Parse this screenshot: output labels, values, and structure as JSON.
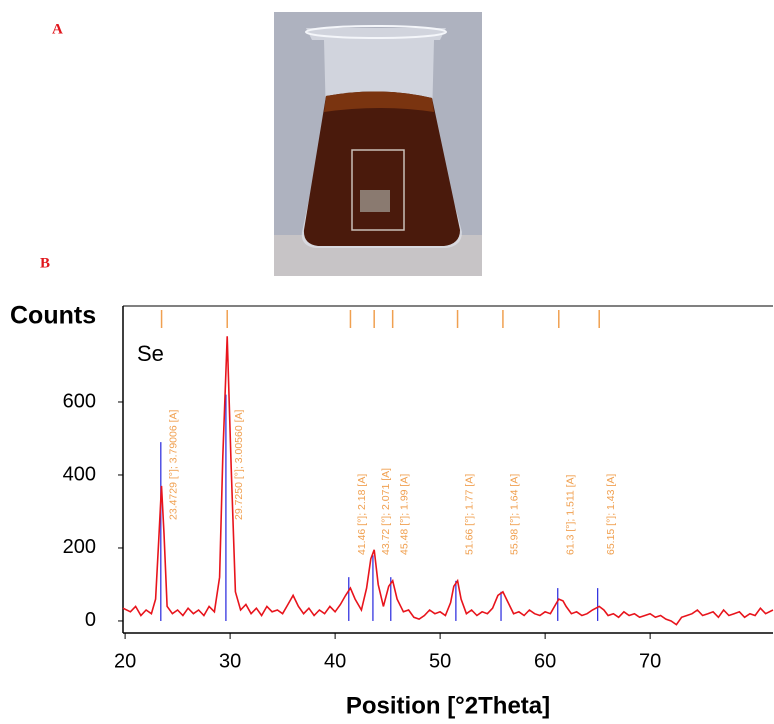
{
  "panel_a": {
    "label": "A"
  },
  "panel_b": {
    "label": "B"
  },
  "chart_data": {
    "type": "line",
    "y_label": "Counts",
    "x_label": "Position [°2Theta]",
    "phase_label": "Se",
    "color": "#e8141c",
    "xlim": [
      19.8,
      81.7
    ],
    "ylim": [
      -33,
      863
    ],
    "xticks": [
      20,
      30,
      40,
      50,
      60,
      70
    ],
    "yticks": [
      0,
      200,
      400,
      600
    ],
    "x": [
      19.8,
      20.5,
      21,
      21.5,
      22,
      22.5,
      22.9,
      23.2,
      23.47,
      23.7,
      24,
      24.5,
      25,
      25.5,
      26,
      26.5,
      27,
      27.5,
      28,
      28.5,
      29,
      29.3,
      29.72,
      30.1,
      30.5,
      31,
      31.5,
      32,
      32.5,
      33,
      33.5,
      34,
      34.5,
      35,
      35.5,
      36,
      36.5,
      37,
      37.5,
      38,
      38.5,
      39,
      39.5,
      40,
      40.5,
      41,
      41.46,
      41.9,
      42.5,
      43,
      43.4,
      43.72,
      44.1,
      44.6,
      45.1,
      45.48,
      45.9,
      46.5,
      47,
      47.5,
      48,
      48.5,
      49,
      49.5,
      50,
      50.5,
      51,
      51.3,
      51.66,
      52,
      52.5,
      53,
      53.5,
      54,
      54.5,
      55,
      55.5,
      55.98,
      56.4,
      57,
      57.5,
      58,
      58.5,
      59,
      59.5,
      60,
      60.5,
      61,
      61.3,
      61.7,
      62,
      62.5,
      63,
      63.5,
      64,
      64.5,
      65.15,
      65.6,
      66,
      66.5,
      67,
      67.5,
      68,
      68.5,
      69,
      69.5,
      70,
      70.5,
      71,
      71.5,
      72,
      72.5,
      73,
      73.5,
      74,
      74.5,
      75,
      75.5,
      76,
      76.5,
      77,
      77.5,
      78,
      78.5,
      79,
      79.5,
      80,
      80.5,
      81,
      81.7
    ],
    "values": [
      35,
      25,
      40,
      15,
      30,
      20,
      60,
      220,
      370,
      240,
      40,
      20,
      30,
      15,
      35,
      20,
      30,
      15,
      40,
      25,
      120,
      450,
      780,
      420,
      80,
      30,
      45,
      20,
      35,
      15,
      40,
      25,
      30,
      20,
      45,
      70,
      40,
      20,
      35,
      15,
      30,
      20,
      40,
      25,
      45,
      70,
      90,
      60,
      30,
      90,
      170,
      195,
      100,
      40,
      95,
      110,
      60,
      25,
      30,
      10,
      5,
      15,
      30,
      20,
      25,
      15,
      50,
      95,
      110,
      60,
      20,
      30,
      15,
      25,
      20,
      35,
      70,
      80,
      55,
      20,
      25,
      15,
      30,
      20,
      15,
      25,
      20,
      45,
      60,
      55,
      40,
      20,
      25,
      15,
      20,
      30,
      40,
      30,
      15,
      20,
      10,
      25,
      15,
      20,
      10,
      15,
      20,
      10,
      15,
      5,
      0,
      -10,
      10,
      15,
      20,
      30,
      15,
      20,
      25,
      10,
      30,
      15,
      20,
      25,
      10,
      20,
      15,
      35,
      20,
      30
    ],
    "reference_peaks": {
      "color": "#3535e0",
      "x": [
        23.4,
        29.6,
        41.3,
        43.6,
        45.3,
        51.5,
        55.8,
        61.2,
        65.0
      ],
      "values": [
        490,
        620,
        120,
        180,
        120,
        110,
        80,
        90,
        90
      ]
    },
    "annotation_color": "#f0a050",
    "annotations": [
      {
        "x": 23.4729,
        "text": "23.4729 [°]; 3.79006 [A]"
      },
      {
        "x": 29.725,
        "text": "29.7250 [°]; 3.00560 [A]"
      },
      {
        "x": 41.46,
        "text": "41.46 [°]; 2.18 [A]"
      },
      {
        "x": 43.72,
        "text": "43.72 [°]; 2.071 [A]"
      },
      {
        "x": 45.48,
        "text": "45.48 [°]; 1.99 [A]"
      },
      {
        "x": 51.66,
        "text": "51.66 [°]; 1.77 [A]"
      },
      {
        "x": 55.98,
        "text": "55.98 [°]; 1.64 [A]"
      },
      {
        "x": 61.3,
        "text": "61.3 [°]; 1.511 [A]"
      },
      {
        "x": 65.15,
        "text": "65.15 [°]; 1.43 [A]"
      }
    ]
  }
}
